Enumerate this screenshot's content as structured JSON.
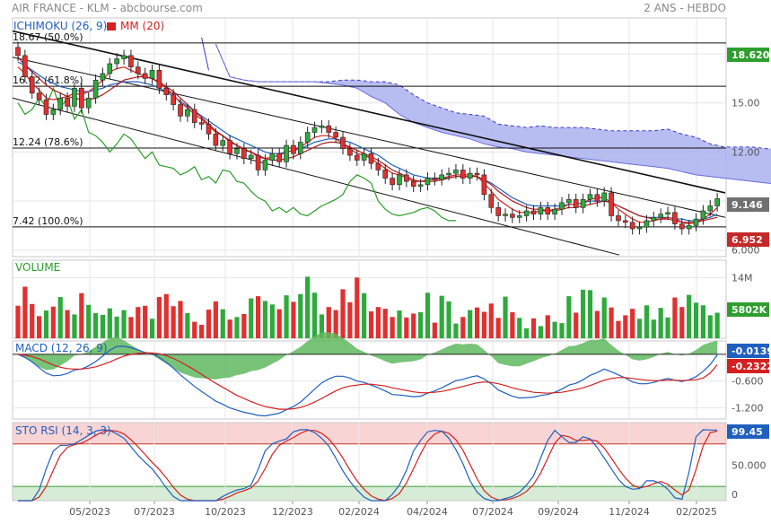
{
  "header": {
    "title": "AIR FRANCE - KLM - abcbourse.com",
    "period": "2 ANS - HEBDO"
  },
  "colors": {
    "blue": "#1f5fbf",
    "red": "#d42020",
    "green": "#2a9d2a",
    "cloud": "#aab0ee",
    "up": "#2eaa3c",
    "down": "#e03030",
    "grid": "#e6e6e6",
    "fibo": "#111111",
    "last_bg": "#707070",
    "mm_bg": "#c62828",
    "green_bg": "#2e9e2e",
    "macd_blue_bg": "#1f5fbf",
    "macd_red_bg": "#d42020",
    "sto_bg": "#1f5fbf"
  },
  "chart_data": [
    {
      "type": "candlestick",
      "legend": {
        "ichimoku": "ICHIMOKU (26, 9)",
        "mm": "MM (20)"
      },
      "y_ticks": [
        "18.00",
        "15.00",
        "12.00",
        "9.00",
        "6.000"
      ],
      "ylim": [
        5.6,
        20.2
      ],
      "fibo_levels": [
        {
          "label": "18.67  (50.0%)",
          "value": 18.67
        },
        {
          "label": "16.02  (61.8%)",
          "value": 16.02
        },
        {
          "label": "12.24  (78.6%)",
          "value": 12.24
        },
        {
          "label": "7.42  (100.0%)",
          "value": 7.42
        }
      ],
      "badges": {
        "green": "18.620",
        "last": "9.146",
        "mm": "6.952"
      },
      "close": [
        17.9,
        16.6,
        15.6,
        15.2,
        14.3,
        14.6,
        15.3,
        14.8,
        15.9,
        14.7,
        15.3,
        16.4,
        16.8,
        17.4,
        17.7,
        17.9,
        17.2,
        16.8,
        16.5,
        17.0,
        15.9,
        15.5,
        14.9,
        14.2,
        14.6,
        13.8,
        13.7,
        13.1,
        12.4,
        12.7,
        11.9,
        12.2,
        11.6,
        11.8,
        10.9,
        11.5,
        11.9,
        11.4,
        12.4,
        11.9,
        12.6,
        13.2,
        13.5,
        13.6,
        13.2,
        12.9,
        12.2,
        11.8,
        11.5,
        11.9,
        11.3,
        10.9,
        10.4,
        10.0,
        10.6,
        10.2,
        9.9,
        10.0,
        10.4,
        10.3,
        10.6,
        10.7,
        10.9,
        10.4,
        10.7,
        10.6,
        9.4,
        8.6,
        8.1,
        8.2,
        8.0,
        8.1,
        8.4,
        8.2,
        8.6,
        8.2,
        8.5,
        8.9,
        9.1,
        8.6,
        9.1,
        9.4,
        9.0,
        9.5,
        8.1,
        7.8,
        7.7,
        7.3,
        7.4,
        7.8,
        8.0,
        8.2,
        8.3,
        7.6,
        7.3,
        7.5,
        7.9,
        8.4,
        8.7,
        9.146
      ],
      "tenkan": [
        17.2,
        16.8,
        16.2,
        15.8,
        15.3,
        15.2,
        15.3,
        15.4,
        15.6,
        15.5,
        15.7,
        16.0,
        16.4,
        16.9,
        17.1,
        17.2,
        17.0,
        16.8,
        16.6,
        16.5,
        16.2,
        15.9,
        15.5,
        15.0,
        14.7,
        14.3,
        14.0,
        13.6,
        13.2,
        13.0,
        12.6,
        12.4,
        12.1,
        12.0,
        11.7,
        11.6,
        11.7,
        11.8,
        12.0,
        12.1,
        12.3,
        12.6,
        12.9,
        13.0,
        13.0,
        12.8,
        12.5,
        12.2,
        11.9,
        11.8,
        11.6,
        11.3,
        11.0,
        10.7,
        10.6,
        10.4,
        10.2,
        10.2,
        10.3,
        10.3,
        10.4,
        10.5,
        10.6,
        10.6,
        10.6,
        10.5,
        10.1,
        9.6,
        9.1,
        8.8,
        8.5,
        8.3,
        8.3,
        8.3,
        8.4,
        8.4,
        8.5,
        8.6,
        8.8,
        8.8,
        8.9,
        9.1,
        9.2,
        9.2,
        8.9,
        8.5,
        8.2,
        7.9,
        7.7,
        7.7,
        7.8,
        7.9,
        8.0,
        7.9,
        7.7,
        7.6,
        7.7,
        7.9,
        8.2,
        8.6
      ],
      "kijun": [
        17.5,
        17.3,
        17.0,
        16.7,
        16.4,
        16.2,
        16.0,
        15.9,
        15.8,
        15.7,
        15.7,
        15.8,
        15.9,
        16.1,
        16.2,
        16.3,
        16.3,
        16.3,
        16.2,
        16.1,
        15.9,
        15.7,
        15.4,
        15.1,
        14.8,
        14.5,
        14.2,
        13.9,
        13.6,
        13.3,
        13.0,
        12.8,
        12.6,
        12.4,
        12.2,
        12.0,
        11.9,
        11.9,
        12.0,
        12.1,
        12.2,
        12.4,
        12.6,
        12.7,
        12.8,
        12.8,
        12.7,
        12.6,
        12.4,
        12.2,
        12.0,
        11.8,
        11.5,
        11.2,
        11.0,
        10.8,
        10.6,
        10.5,
        10.4,
        10.4,
        10.4,
        10.4,
        10.5,
        10.5,
        10.5,
        10.5,
        10.3,
        10.1,
        9.8,
        9.5,
        9.2,
        9.0,
        8.8,
        8.7,
        8.7,
        8.7,
        8.7,
        8.7,
        8.8,
        8.8,
        8.9,
        9.0,
        9.0,
        9.0,
        8.9,
        8.7,
        8.5,
        8.3,
        8.1,
        8.0,
        8.0,
        8.0,
        8.0,
        7.9,
        7.9,
        7.8,
        7.8,
        7.9,
        8.0,
        8.2
      ],
      "mm": [
        17.8,
        17.3,
        16.9,
        16.5,
        16.1,
        15.8,
        15.6,
        15.4,
        15.3,
        15.2,
        15.2,
        15.3,
        15.5,
        15.8,
        16.1,
        16.4,
        16.5,
        16.6,
        16.6,
        16.5,
        16.3,
        16.0,
        15.7,
        15.3,
        14.9,
        14.5,
        14.1,
        13.7,
        13.3,
        13.0,
        12.7,
        12.4,
        12.2,
        12.0,
        11.8,
        11.6,
        11.5,
        11.5,
        11.6,
        11.7,
        11.9,
        12.1,
        12.3,
        12.5,
        12.6,
        12.6,
        12.5,
        12.3,
        12.1,
        11.9,
        11.7,
        11.5,
        11.2,
        10.9,
        10.7,
        10.5,
        10.3,
        10.2,
        10.2,
        10.2,
        10.3,
        10.4,
        10.5,
        10.5,
        10.5,
        10.5,
        10.3,
        10.0,
        9.6,
        9.3,
        9.0,
        8.8,
        8.6,
        8.5,
        8.5,
        8.4,
        8.4,
        8.5,
        8.6,
        8.6,
        8.7,
        8.8,
        8.9,
        9.0,
        8.9,
        8.7,
        8.5,
        8.3,
        8.1,
        8.0,
        7.9,
        7.9,
        7.9,
        7.8,
        7.7,
        7.7,
        7.7,
        7.8,
        7.9,
        8.0
      ],
      "chikou": [
        15.0,
        14.3,
        14.6,
        15.3,
        14.8,
        15.9,
        14.7,
        15.3,
        14.0,
        14.6,
        13.2,
        13.0,
        12.6,
        12.0,
        12.5,
        13.1,
        12.8,
        12.2,
        11.6,
        12.0,
        11.2,
        11.1,
        11.0,
        10.6,
        10.8,
        11.1,
        10.3,
        10.5,
        10.1,
        10.9,
        10.8,
        10.2,
        10.1,
        9.6,
        9.2,
        9.0,
        8.4,
        8.6,
        8.3,
        8.6,
        8.2,
        8.1,
        8.4,
        8.7,
        8.9,
        9.1,
        9.4,
        10.2,
        10.6,
        10.4,
        10.1,
        9.0,
        8.5,
        8.2,
        8.1,
        8.2,
        8.3,
        8.5,
        8.6,
        8.4,
        8.0,
        7.8,
        7.8
      ],
      "cloud_upper": [
        18.6,
        16.6,
        16.4,
        16.3,
        16.3,
        16.3,
        16.3,
        16.3,
        16.3,
        16.4,
        16.4,
        16.3,
        16.3,
        16.1,
        15.5,
        15.0,
        14.7,
        14.4,
        14.3,
        14.2,
        13.7,
        13.6,
        13.5,
        13.6,
        13.5,
        13.5,
        13.5,
        13.4,
        13.3,
        13.3,
        13.3,
        13.3,
        13.4,
        13.1,
        12.9,
        12.5,
        12.3,
        12.3,
        12.3,
        12.2,
        12.2,
        12.1,
        11.3,
        11.0,
        10.7,
        10.7,
        10.6,
        10.6,
        10.5
      ],
      "cloud_lower": [
        18.6,
        16.6,
        16.4,
        16.3,
        16.3,
        16.3,
        16.3,
        16.3,
        16.2,
        16.1,
        15.9,
        15.4,
        15.0,
        14.3,
        13.8,
        13.5,
        13.2,
        13.0,
        12.8,
        12.5,
        12.3,
        12.2,
        12.0,
        11.9,
        11.8,
        11.7,
        11.6,
        11.5,
        11.4,
        11.3,
        11.2,
        11.1,
        11.0,
        10.8,
        10.6,
        10.5,
        10.4,
        10.3,
        10.2,
        10.1,
        10.0,
        9.9,
        9.8,
        9.7,
        9.6,
        9.5,
        9.5,
        9.4,
        9.3
      ]
    },
    {
      "type": "bar",
      "legend": "VOLUME",
      "y_ticks": [
        "14M"
      ],
      "ylim": [
        0,
        18
      ],
      "badge": "5802K",
      "values": [
        7.5,
        11.9,
        7.9,
        5.1,
        6.4,
        7.3,
        9.5,
        6.5,
        5.5,
        10.4,
        7.7,
        5.8,
        5.4,
        6.9,
        5.0,
        6.5,
        4.9,
        7.2,
        7.5,
        4.5,
        9.5,
        10.2,
        7.4,
        8.6,
        5.8,
        3.8,
        3.1,
        6.6,
        8.5,
        6.7,
        4.3,
        4.9,
        5.6,
        9.2,
        9.7,
        8.6,
        7.8,
        6.7,
        9.9,
        8.4,
        10.2,
        14.2,
        10.5,
        5.5,
        7.2,
        6.5,
        11.3,
        8.3,
        14.0,
        10.4,
        6.2,
        7.2,
        6.8,
        4.9,
        6.4,
        4.8,
        5.7,
        6.0,
        10.5,
        3.6,
        9.8,
        8.5,
        3.4,
        4.9,
        6.5,
        7.1,
        6.1,
        8.0,
        4.7,
        9.6,
        6.0,
        4.7,
        2.3,
        4.6,
        2.8,
        5.3,
        3.8,
        3.5,
        9.7,
        5.9,
        11.2,
        11.1,
        6.3,
        9.4,
        7.1,
        4.0,
        5.3,
        6.8,
        4.5,
        7.6,
        4.3,
        7.0,
        4.8,
        9.4,
        7.2,
        10.0,
        8.2,
        7.6,
        5.3,
        5.9
      ],
      "colors": [
        "down",
        "down",
        "down",
        "down",
        "up",
        "down",
        "up",
        "down",
        "up",
        "down",
        "up",
        "up",
        "up",
        "up",
        "up",
        "up",
        "down",
        "down",
        "down",
        "up",
        "down",
        "down",
        "down",
        "down",
        "up",
        "down",
        "down",
        "down",
        "down",
        "up",
        "down",
        "up",
        "down",
        "up",
        "down",
        "up",
        "up",
        "down",
        "up",
        "down",
        "up",
        "up",
        "up",
        "up",
        "down",
        "down",
        "down",
        "down",
        "down",
        "up",
        "down",
        "down",
        "down",
        "down",
        "up",
        "down",
        "down",
        "up",
        "up",
        "down",
        "up",
        "up",
        "up",
        "down",
        "up",
        "down",
        "down",
        "down",
        "down",
        "up",
        "down",
        "up",
        "up",
        "down",
        "up",
        "down",
        "up",
        "up",
        "up",
        "down",
        "up",
        "up",
        "down",
        "up",
        "down",
        "down",
        "down",
        "down",
        "up",
        "up",
        "up",
        "up",
        "up",
        "down",
        "down",
        "up",
        "up",
        "up",
        "up",
        "up"
      ]
    },
    {
      "type": "line",
      "legend": "MACD (12, 26, 9)",
      "y_ticks": [
        "-0.600",
        "-1.200"
      ],
      "ylim": [
        -1.45,
        0.3
      ],
      "badges": {
        "macd": "-0.0139",
        "signal": "-0.2322"
      },
      "macd": [
        0.0,
        -0.07,
        -0.17,
        -0.3,
        -0.42,
        -0.48,
        -0.47,
        -0.43,
        -0.35,
        -0.33,
        -0.26,
        -0.16,
        -0.04,
        0.09,
        0.18,
        0.18,
        0.15,
        0.1,
        0.04,
        0.02,
        -0.07,
        -0.18,
        -0.31,
        -0.46,
        -0.59,
        -0.72,
        -0.83,
        -0.94,
        -1.05,
        -1.12,
        -1.2,
        -1.25,
        -1.3,
        -1.33,
        -1.37,
        -1.38,
        -1.35,
        -1.32,
        -1.24,
        -1.17,
        -1.07,
        -0.93,
        -0.78,
        -0.64,
        -0.55,
        -0.49,
        -0.49,
        -0.53,
        -0.6,
        -0.63,
        -0.69,
        -0.75,
        -0.82,
        -0.9,
        -0.91,
        -0.93,
        -0.95,
        -0.94,
        -0.87,
        -0.82,
        -0.75,
        -0.67,
        -0.59,
        -0.56,
        -0.51,
        -0.48,
        -0.55,
        -0.66,
        -0.8,
        -0.87,
        -0.94,
        -0.98,
        -0.97,
        -0.96,
        -0.92,
        -0.9,
        -0.85,
        -0.78,
        -0.69,
        -0.65,
        -0.57,
        -0.47,
        -0.41,
        -0.33,
        -0.39,
        -0.46,
        -0.53,
        -0.62,
        -0.66,
        -0.66,
        -0.63,
        -0.58,
        -0.54,
        -0.58,
        -0.61,
        -0.57,
        -0.5,
        -0.38,
        -0.23,
        -0.0139
      ],
      "signal": [
        0.0,
        -0.02,
        -0.05,
        -0.1,
        -0.17,
        -0.24,
        -0.29,
        -0.32,
        -0.33,
        -0.33,
        -0.31,
        -0.28,
        -0.23,
        -0.17,
        -0.1,
        -0.04,
        0.0,
        0.02,
        0.03,
        0.03,
        0.01,
        -0.03,
        -0.09,
        -0.17,
        -0.26,
        -0.35,
        -0.45,
        -0.55,
        -0.65,
        -0.74,
        -0.83,
        -0.92,
        -0.99,
        -1.06,
        -1.12,
        -1.17,
        -1.2,
        -1.23,
        -1.23,
        -1.22,
        -1.19,
        -1.14,
        -1.07,
        -0.99,
        -0.9,
        -0.82,
        -0.75,
        -0.71,
        -0.69,
        -0.67,
        -0.67,
        -0.69,
        -0.71,
        -0.75,
        -0.78,
        -0.81,
        -0.84,
        -0.86,
        -0.86,
        -0.85,
        -0.83,
        -0.8,
        -0.76,
        -0.72,
        -0.68,
        -0.64,
        -0.62,
        -0.63,
        -0.66,
        -0.7,
        -0.75,
        -0.79,
        -0.82,
        -0.85,
        -0.86,
        -0.87,
        -0.86,
        -0.85,
        -0.82,
        -0.79,
        -0.75,
        -0.7,
        -0.64,
        -0.58,
        -0.54,
        -0.52,
        -0.52,
        -0.54,
        -0.56,
        -0.58,
        -0.59,
        -0.59,
        -0.58,
        -0.58,
        -0.59,
        -0.58,
        -0.57,
        -0.53,
        -0.42,
        -0.2322
      ]
    },
    {
      "type": "line",
      "legend": "STO RSI (14, 3, 3)",
      "y_ticks": [
        "50.000",
        "0"
      ],
      "ylim": [
        0,
        110
      ],
      "zones": {
        "high": 80,
        "low": 20
      },
      "badge": "99.45",
      "k": [
        0,
        0,
        0,
        15,
        45,
        70,
        78,
        78,
        80,
        86,
        92,
        98,
        100,
        99,
        94,
        88,
        76,
        64,
        54,
        45,
        32,
        18,
        6,
        0,
        0,
        0,
        0,
        0,
        0,
        6,
        11,
        15,
        17,
        22,
        44,
        70,
        80,
        84,
        87,
        97,
        100,
        100,
        96,
        88,
        77,
        60,
        42,
        27,
        15,
        5,
        0,
        0,
        0,
        9,
        22,
        43,
        70,
        85,
        97,
        99,
        98,
        88,
        72,
        52,
        28,
        12,
        3,
        0,
        0,
        3,
        6,
        12,
        22,
        35,
        60,
        85,
        99,
        90,
        82,
        82,
        90,
        87,
        75,
        60,
        45,
        30,
        20,
        16,
        17,
        28,
        28,
        24,
        16,
        4,
        2,
        40,
        90,
        100,
        99.45,
        99.45
      ],
      "d": [
        0,
        0,
        0,
        5,
        20,
        43,
        64,
        75,
        79,
        81,
        86,
        92,
        97,
        99,
        98,
        94,
        86,
        76,
        65,
        54,
        44,
        32,
        19,
        8,
        2,
        0,
        0,
        0,
        0,
        2,
        6,
        11,
        14,
        18,
        28,
        45,
        65,
        78,
        84,
        89,
        95,
        99,
        99,
        95,
        87,
        75,
        60,
        43,
        28,
        16,
        7,
        2,
        0,
        3,
        10,
        25,
        45,
        66,
        84,
        94,
        98,
        95,
        86,
        71,
        51,
        31,
        14,
        5,
        1,
        1,
        3,
        7,
        13,
        23,
        39,
        60,
        81,
        92,
        90,
        85,
        85,
        86,
        84,
        74,
        60,
        45,
        32,
        22,
        18,
        20,
        24,
        27,
        23,
        15,
        8,
        15,
        44,
        77,
        96,
        98
      ]
    }
  ],
  "x_axis": [
    "05/2023",
    "07/2023",
    "10/2023",
    "12/2023",
    "02/2024",
    "04/2024",
    "07/2024",
    "09/2024",
    "11/2024",
    "02/2025"
  ]
}
